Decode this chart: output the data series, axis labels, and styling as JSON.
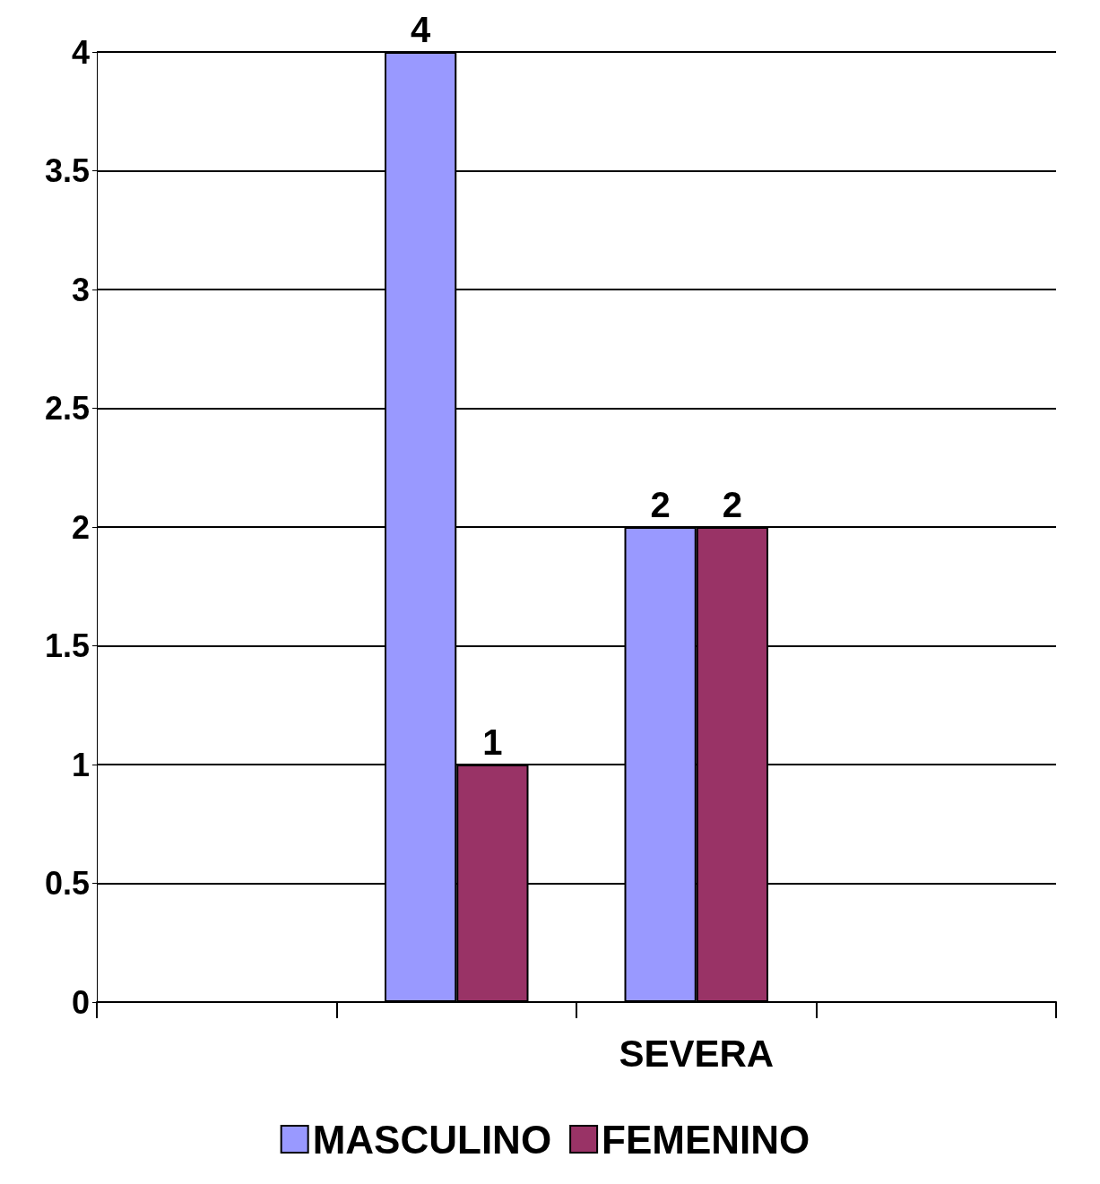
{
  "chart_data": {
    "type": "bar",
    "categories": [
      null,
      null,
      "SEVERA",
      null
    ],
    "series": [
      {
        "name": "MASCULINO",
        "color": "#9999ff",
        "values": [
          null,
          4,
          2,
          null
        ]
      },
      {
        "name": "FEMENINO",
        "color": "#993366",
        "values": [
          null,
          1,
          2,
          null
        ]
      }
    ],
    "ylim": [
      0,
      4
    ],
    "yticks": [
      0,
      0.5,
      1,
      1.5,
      2,
      2.5,
      3,
      3.5,
      4
    ],
    "grid": "y",
    "legend": "bottom",
    "data_labels": true
  }
}
